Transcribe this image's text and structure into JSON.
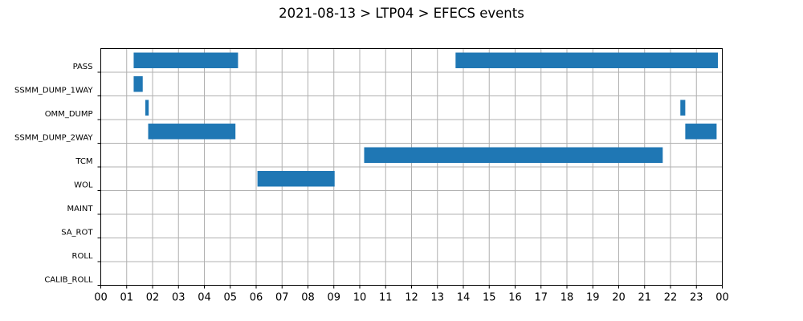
{
  "chart_data": {
    "type": "bar",
    "orientation": "horizontal-timeline",
    "title": "2021-08-13 > LTP04 > EFECS events",
    "xlabel": "",
    "ylabel": "",
    "xlim": [
      0,
      24
    ],
    "x_ticks": [
      "00",
      "01",
      "02",
      "03",
      "04",
      "05",
      "06",
      "07",
      "08",
      "09",
      "10",
      "11",
      "12",
      "13",
      "14",
      "15",
      "16",
      "17",
      "18",
      "19",
      "20",
      "21",
      "22",
      "23",
      "00"
    ],
    "categories": [
      "PASS",
      "SSMM_DUMP_1WAY",
      "OMM_DUMP",
      "SSMM_DUMP_2WAY",
      "TCM",
      "WOL",
      "MAINT",
      "SA_ROT",
      "ROLL",
      "CALIB_ROLL"
    ],
    "grid": true,
    "color": "#1f77b4",
    "intervals": [
      {
        "category": "PASS",
        "start": 1.27,
        "end": 5.3
      },
      {
        "category": "PASS",
        "start": 13.7,
        "end": 23.83
      },
      {
        "category": "SSMM_DUMP_1WAY",
        "start": 1.27,
        "end": 1.62
      },
      {
        "category": "OMM_DUMP",
        "start": 1.72,
        "end": 1.85
      },
      {
        "category": "OMM_DUMP",
        "start": 22.38,
        "end": 22.57
      },
      {
        "category": "SSMM_DUMP_2WAY",
        "start": 1.83,
        "end": 5.2
      },
      {
        "category": "SSMM_DUMP_2WAY",
        "start": 22.57,
        "end": 23.78
      },
      {
        "category": "TCM",
        "start": 10.17,
        "end": 21.7
      },
      {
        "category": "WOL",
        "start": 6.05,
        "end": 9.03
      }
    ]
  }
}
